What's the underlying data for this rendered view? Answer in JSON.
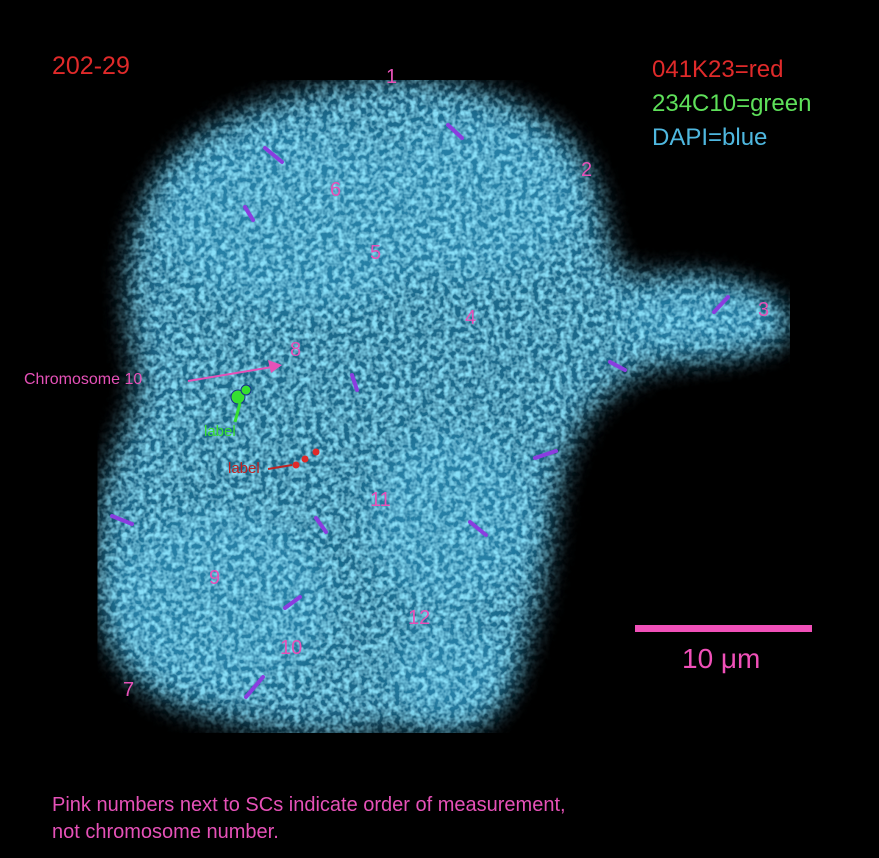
{
  "sample_id": "202-29",
  "legend": [
    {
      "text": "041K23=red",
      "color": "#e02a2a"
    },
    {
      "text": "234C10=green",
      "color": "#5ee05a"
    },
    {
      "text": "DAPI=blue",
      "color": "#4fb8e0"
    }
  ],
  "scale_bar": {
    "label": "10 μm",
    "color": "#f050b8"
  },
  "annotations": {
    "chromosome": "Chromosome 10",
    "green_label": "label",
    "red_label": "label"
  },
  "sc_numbers": [
    "1",
    "2",
    "3",
    "4",
    "5",
    "6",
    "7",
    "8",
    "9",
    "10",
    "11",
    "12"
  ],
  "footnote": [
    "Pink numbers next to SCs indicate order of measurement,",
    "not chromosome number."
  ],
  "colors": {
    "nucleus": "#3aa6d4",
    "numbers": "#e651b8",
    "sc_marks": "#8a3de0",
    "background": "#000000"
  }
}
